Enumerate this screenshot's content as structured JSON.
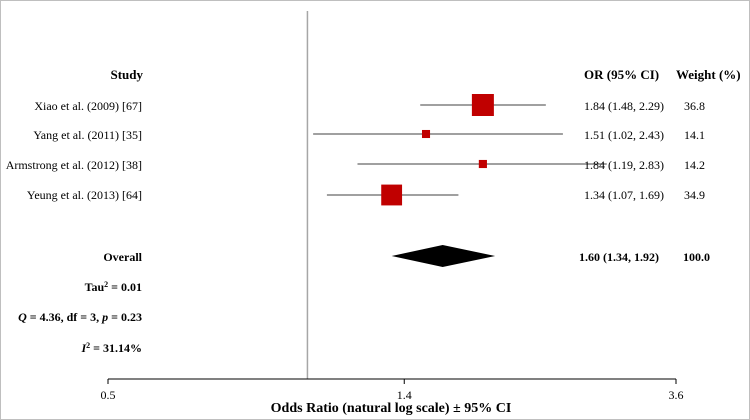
{
  "chart_data": {
    "type": "forest",
    "headers": {
      "study": "Study",
      "or": "OR (95% CI)",
      "weight": "Weight (%)"
    },
    "studies": [
      {
        "label": "Xiao et al. (2009) [67]",
        "or": 1.84,
        "lower": 1.48,
        "upper": 2.29,
        "or_text": "1.84 (1.48, 2.29)",
        "weight": 36.8,
        "weight_text": "36.8"
      },
      {
        "label": "Yang et al. (2011) [35]",
        "or": 1.51,
        "lower": 1.02,
        "upper": 2.43,
        "or_text": "1.51 (1.02, 2.43)",
        "weight": 14.1,
        "weight_text": "14.1"
      },
      {
        "label": "Armstrong et al. (2012) [38]",
        "or": 1.84,
        "lower": 1.19,
        "upper": 2.83,
        "or_text": "1.84 (1.19, 2.83)",
        "weight": 14.2,
        "weight_text": "14.2"
      },
      {
        "label": "Yeung et al. (2013) [64]",
        "or": 1.34,
        "lower": 1.07,
        "upper": 1.69,
        "or_text": "1.34 (1.07, 1.69)",
        "weight": 34.9,
        "weight_text": "34.9"
      }
    ],
    "overall": {
      "label": "Overall",
      "or": 1.6,
      "lower": 1.34,
      "upper": 1.92,
      "or_text": "1.60 (1.34, 1.92)",
      "weight_text": "100.0"
    },
    "stats": {
      "tau_base": "Tau",
      "tau_sup": "2",
      "tau_rest": " = 0.01",
      "q_italic": "Q",
      "q_mid": " = 4.36, df = 3, ",
      "q_p": "p",
      "q_end": " = 0.23",
      "i_italic": "I",
      "i_sup": "2",
      "i_rest": " = 31.14%"
    },
    "x_axis": {
      "scale": "log",
      "ticks": [
        0.5,
        1.4,
        3.6
      ],
      "tick_labels": [
        "0.5",
        "1.4",
        "3.6"
      ],
      "range": [
        0.5,
        3.6
      ],
      "reference_line": 1,
      "label": "Odds Ratio (natural log scale) ± 95% CI"
    },
    "colors": {
      "marker": "#c00000",
      "ci_line": "#404040",
      "diamond": "#000000",
      "reference_line": "#a6a6a6",
      "axis": "#000000"
    }
  }
}
